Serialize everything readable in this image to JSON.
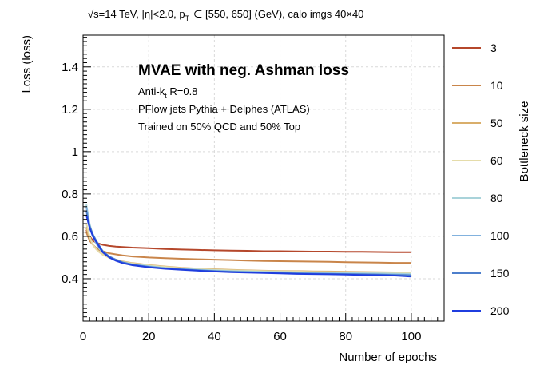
{
  "chart_data": {
    "type": "line",
    "header_text": "√s=14 TeV, |η|<2.0, p",
    "header_sub": "T",
    "header_tail": "∈ [550, 650] (GeV), calo imgs 40×40",
    "title": "MVAE with neg. Ashman loss",
    "annotations": [
      {
        "text": "Anti-k",
        "sub": "t",
        "tail": " R=0.8"
      },
      {
        "text": "PFlow jets Pythia + Delphes (ATLAS)"
      },
      {
        "text": "Trained on 50% QCD and 50% Top"
      }
    ],
    "xlabel": "Number of epochs",
    "ylabel": "Loss (loss)",
    "legend_title": "Bottleneck size",
    "legend_placement": "right",
    "grid": true,
    "xlim": [
      0,
      110
    ],
    "ylim": [
      0.2,
      1.55
    ],
    "xticks": [
      0,
      20,
      40,
      60,
      80,
      100
    ],
    "xtick_labels": [
      "0",
      "20",
      "40",
      "60",
      "80",
      "100"
    ],
    "yticks": [
      0.4,
      0.6,
      0.8,
      1.0,
      1.2,
      1.4
    ],
    "ytick_labels": [
      "0.4",
      "0.6",
      "0.8",
      "1",
      "1.2",
      "1.4"
    ],
    "x": [
      1,
      2,
      3,
      4,
      5,
      6,
      8,
      10,
      12,
      15,
      20,
      25,
      30,
      35,
      40,
      45,
      50,
      55,
      60,
      65,
      70,
      75,
      80,
      85,
      90,
      95,
      100
    ],
    "series": [
      {
        "name": "3",
        "color": "#b5472b",
        "values": [
          0.63,
          0.6,
          0.58,
          0.57,
          0.565,
          0.56,
          0.555,
          0.552,
          0.55,
          0.547,
          0.544,
          0.54,
          0.538,
          0.536,
          0.534,
          0.533,
          0.532,
          0.53,
          0.53,
          0.529,
          0.528,
          0.528,
          0.527,
          0.527,
          0.526,
          0.525,
          0.525
        ]
      },
      {
        "name": "10",
        "color": "#c9854a",
        "values": [
          0.62,
          0.58,
          0.56,
          0.545,
          0.535,
          0.53,
          0.52,
          0.515,
          0.51,
          0.505,
          0.5,
          0.497,
          0.494,
          0.492,
          0.49,
          0.488,
          0.486,
          0.484,
          0.483,
          0.482,
          0.481,
          0.48,
          0.478,
          0.477,
          0.476,
          0.475,
          0.475
        ]
      },
      {
        "name": "50",
        "color": "#d9ae6b",
        "values": [
          0.64,
          0.59,
          0.56,
          0.54,
          0.525,
          0.515,
          0.5,
          0.49,
          0.482,
          0.474,
          0.465,
          0.458,
          0.452,
          0.448,
          0.445,
          0.442,
          0.44,
          0.438,
          0.437,
          0.436,
          0.435,
          0.434,
          0.433,
          0.432,
          0.431,
          0.43,
          0.43
        ]
      },
      {
        "name": "60",
        "color": "#e5dcaa",
        "values": [
          0.66,
          0.6,
          0.56,
          0.54,
          0.525,
          0.513,
          0.498,
          0.488,
          0.48,
          0.472,
          0.463,
          0.456,
          0.45,
          0.446,
          0.443,
          0.44,
          0.438,
          0.436,
          0.435,
          0.434,
          0.432,
          0.431,
          0.43,
          0.429,
          0.428,
          0.428,
          0.427
        ]
      },
      {
        "name": "80",
        "color": "#a9d3da",
        "values": [
          0.75,
          0.66,
          0.6,
          0.565,
          0.54,
          0.525,
          0.5,
          0.488,
          0.478,
          0.469,
          0.46,
          0.452,
          0.447,
          0.443,
          0.44,
          0.437,
          0.435,
          0.433,
          0.432,
          0.43,
          0.429,
          0.428,
          0.427,
          0.426,
          0.425,
          0.424,
          0.423
        ]
      },
      {
        "name": "100",
        "color": "#82b2de",
        "values": [
          0.74,
          0.65,
          0.6,
          0.57,
          0.545,
          0.525,
          0.5,
          0.487,
          0.477,
          0.467,
          0.457,
          0.45,
          0.445,
          0.441,
          0.437,
          0.434,
          0.432,
          0.43,
          0.428,
          0.427,
          0.425,
          0.424,
          0.423,
          0.422,
          0.421,
          0.42,
          0.418
        ]
      },
      {
        "name": "150",
        "color": "#4d7fcc",
        "values": [
          0.72,
          0.65,
          0.61,
          0.58,
          0.555,
          0.53,
          0.505,
          0.49,
          0.478,
          0.467,
          0.456,
          0.449,
          0.444,
          0.44,
          0.436,
          0.433,
          0.431,
          0.429,
          0.427,
          0.425,
          0.424,
          0.423,
          0.422,
          0.421,
          0.42,
          0.418,
          0.416
        ]
      },
      {
        "name": "200",
        "color": "#1f3ddf",
        "values": [
          0.7,
          0.64,
          0.6,
          0.575,
          0.55,
          0.525,
          0.5,
          0.485,
          0.474,
          0.464,
          0.454,
          0.447,
          0.442,
          0.438,
          0.434,
          0.431,
          0.429,
          0.427,
          0.425,
          0.423,
          0.422,
          0.421,
          0.42,
          0.418,
          0.417,
          0.415,
          0.41
        ]
      }
    ]
  }
}
